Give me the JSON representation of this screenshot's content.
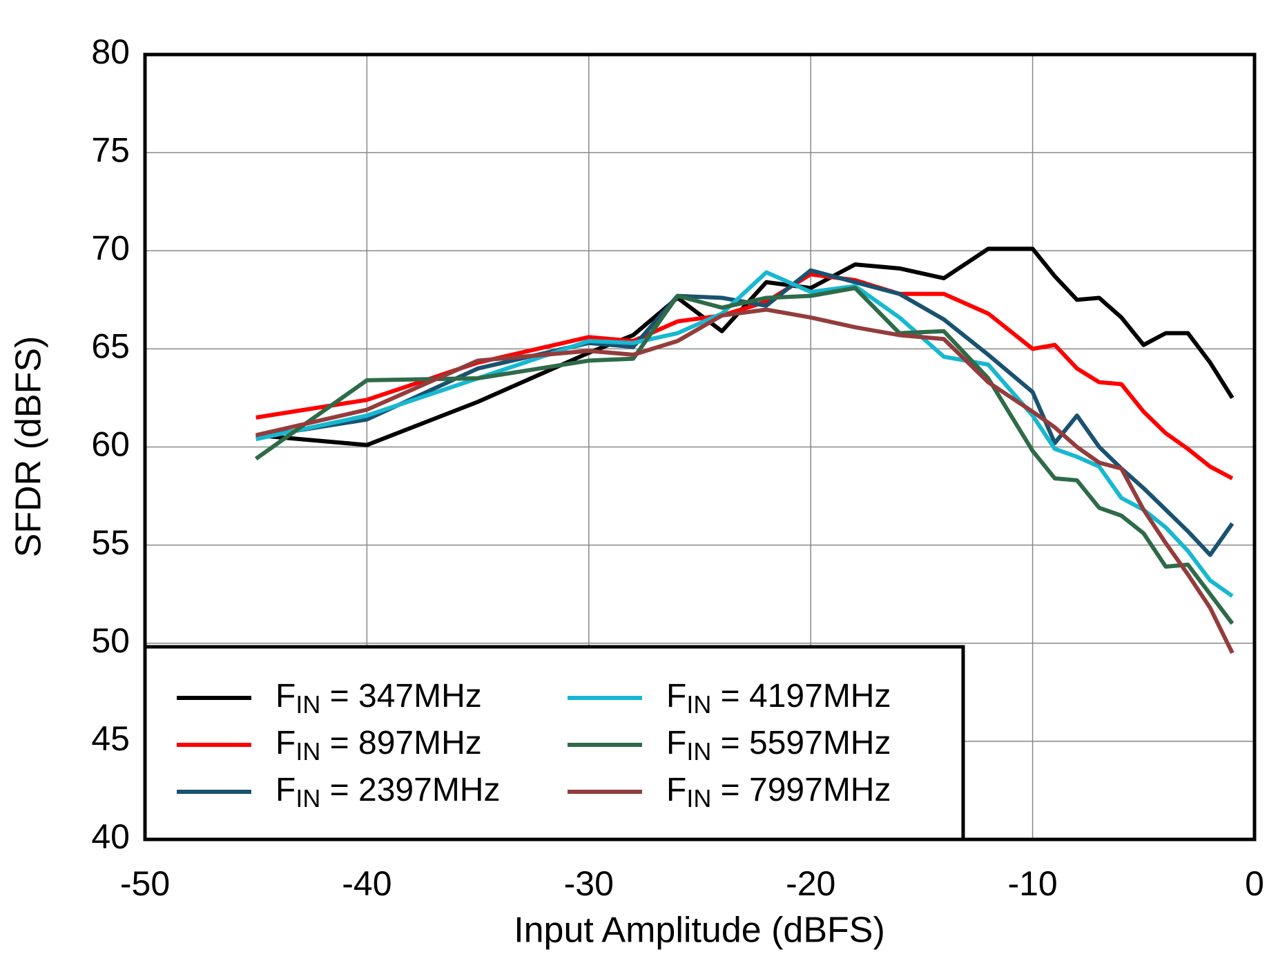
{
  "chart_data": {
    "type": "line",
    "x_label": "Input Amplitude  (dBFS)",
    "y_label": "SFDR  (dBFS)",
    "x": [
      -45,
      -40,
      -35,
      -30,
      -28,
      -26,
      -24,
      -22,
      -20,
      -18,
      -16,
      -14,
      -12,
      -10,
      -9,
      -8,
      -7,
      -6,
      -5,
      -4,
      -3,
      -2,
      -1
    ],
    "series": [
      {
        "name": "FIN = 347MHz",
        "color": "#000000",
        "values": [
          60.6,
          60.1,
          62.3,
          64.8,
          65.7,
          67.6,
          65.9,
          68.4,
          68.1,
          69.3,
          69.1,
          68.6,
          70.1,
          70.1,
          68.7,
          67.5,
          67.6,
          66.6,
          65.2,
          65.8,
          65.8,
          64.3,
          62.5
        ]
      },
      {
        "name": "FIN = 897MHz",
        "color": "#ff0000",
        "values": [
          61.5,
          62.4,
          64.3,
          65.6,
          65.4,
          66.4,
          66.7,
          67.4,
          68.8,
          68.5,
          67.8,
          67.8,
          66.8,
          65.0,
          65.2,
          64.0,
          63.3,
          63.2,
          61.8,
          60.7,
          59.9,
          59.0,
          58.4
        ]
      },
      {
        "name": "FIN = 2397MHz",
        "color": "#1a5270",
        "values": [
          60.5,
          61.4,
          64.0,
          65.3,
          65.1,
          67.7,
          67.6,
          67.2,
          69.0,
          68.4,
          67.8,
          66.5,
          64.7,
          62.8,
          60.2,
          61.6,
          60.0,
          58.9,
          57.9,
          56.8,
          55.7,
          54.5,
          56.1
        ]
      },
      {
        "name": "FIN = 4197MHz",
        "color": "#17b8d0",
        "values": [
          60.4,
          61.6,
          63.5,
          65.4,
          65.3,
          65.8,
          66.8,
          68.9,
          67.9,
          68.2,
          66.6,
          64.6,
          64.2,
          61.6,
          59.9,
          59.5,
          59.0,
          57.4,
          56.8,
          55.9,
          54.7,
          53.2,
          52.4
        ]
      },
      {
        "name": "FIN = 5597MHz",
        "color": "#2e6b48",
        "values": [
          59.4,
          63.4,
          63.5,
          64.4,
          64.5,
          67.7,
          67.1,
          67.6,
          67.7,
          68.1,
          65.8,
          65.9,
          63.5,
          59.8,
          58.4,
          58.3,
          56.9,
          56.5,
          55.6,
          53.9,
          54.0,
          52.5,
          51.0
        ]
      },
      {
        "name": "FIN = 7997MHz",
        "color": "#943c3c",
        "values": [
          60.6,
          61.9,
          64.4,
          64.9,
          64.7,
          65.4,
          66.7,
          67.0,
          66.6,
          66.1,
          65.7,
          65.5,
          63.3,
          61.8,
          61.0,
          60.0,
          59.2,
          58.9,
          56.8,
          55.1,
          53.5,
          51.8,
          49.5
        ]
      }
    ],
    "xlim": [
      -50,
      0
    ],
    "xticks": [
      -50,
      -40,
      -30,
      -20,
      -10,
      0
    ],
    "ylim": [
      40,
      80
    ],
    "yticks": [
      40,
      45,
      50,
      55,
      60,
      65,
      70,
      75,
      80
    ],
    "grid": true,
    "legend_position": "lower left"
  }
}
